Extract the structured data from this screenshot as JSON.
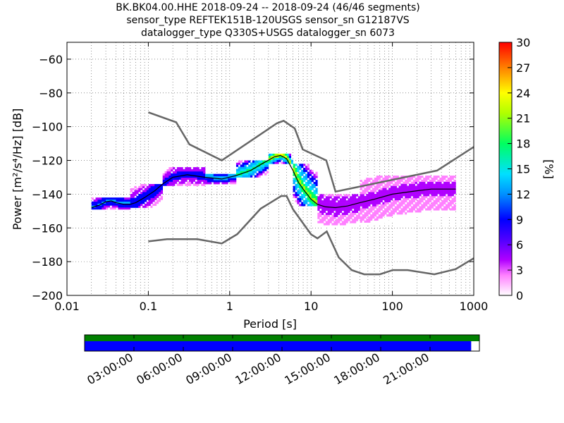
{
  "title": {
    "line1": "BK.BK04.00.HHE   2018-09-24 -- 2018-09-24  (46/46 segments)",
    "line2": "sensor_type REFTEK151B-120USGS sensor_sn G12187VS",
    "line3": "datalogger_type Q330S+USGS datalogger_sn 6073"
  },
  "chart_data": [
    {
      "type": "heatmap",
      "xlabel": "Period [s]",
      "ylabel": "Power [m²/s⁴/Hz] [dB]",
      "xscale": "log",
      "xlim": [
        0.01,
        1000
      ],
      "ylim": [
        -200,
        -50
      ],
      "x_tick_labels": [
        "0.01",
        "0.1",
        "1",
        "10",
        "100",
        "1000"
      ],
      "x_ticks": [
        0.01,
        0.1,
        1,
        10,
        100,
        1000
      ],
      "y_ticks": [
        -200,
        -180,
        -160,
        -140,
        -120,
        -100,
        -80,
        -60
      ],
      "y_tick_labels": [
        "−200",
        "−180",
        "−160",
        "−140",
        "−120",
        "−100",
        "−80",
        "−60"
      ],
      "grid": "dotted",
      "colorbar": {
        "label": "[%]",
        "min": 0,
        "max": 30,
        "ticks": [
          "0",
          "3",
          "6",
          "9",
          "12",
          "15",
          "18",
          "21",
          "24",
          "27",
          "30"
        ],
        "colormap": "pqlx"
      },
      "noise_models": {
        "color": "#666666",
        "high": [
          [
            0.1,
            -91.5
          ],
          [
            0.22,
            -97.4
          ],
          [
            0.32,
            -110.5
          ],
          [
            0.8,
            -120
          ],
          [
            3.8,
            -98
          ],
          [
            4.6,
            -96.5
          ],
          [
            6.3,
            -101
          ],
          [
            7.9,
            -113.5
          ],
          [
            15.4,
            -120
          ],
          [
            20,
            -138.5
          ],
          [
            354,
            -126
          ],
          [
            1000,
            -112
          ]
        ],
        "low": [
          [
            0.1,
            -168
          ],
          [
            0.17,
            -166.7
          ],
          [
            0.4,
            -166.7
          ],
          [
            0.8,
            -169.2
          ],
          [
            1.24,
            -163.7
          ],
          [
            2.4,
            -148.6
          ],
          [
            4.3,
            -141.1
          ],
          [
            5,
            -141.1
          ],
          [
            6,
            -149
          ],
          [
            10,
            -163.8
          ],
          [
            12,
            -166.2
          ],
          [
            15.6,
            -162.1
          ],
          [
            21.9,
            -177.5
          ],
          [
            31.6,
            -185
          ],
          [
            45,
            -187.5
          ],
          [
            70,
            -187.5
          ],
          [
            101,
            -185
          ],
          [
            154,
            -185
          ],
          [
            328,
            -187.5
          ],
          [
            600,
            -184.4
          ],
          [
            1000,
            -178
          ]
        ]
      },
      "median_curve": [
        [
          0.02,
          -148
        ],
        [
          0.025,
          -146.5
        ],
        [
          0.03,
          -144.5
        ],
        [
          0.035,
          -144
        ],
        [
          0.04,
          -145
        ],
        [
          0.05,
          -146
        ],
        [
          0.06,
          -146
        ],
        [
          0.07,
          -145
        ],
        [
          0.09,
          -142
        ],
        [
          0.12,
          -138
        ],
        [
          0.15,
          -134
        ],
        [
          0.2,
          -130
        ],
        [
          0.3,
          -128.5
        ],
        [
          0.5,
          -130
        ],
        [
          0.8,
          -131
        ],
        [
          1.2,
          -129
        ],
        [
          1.8,
          -126
        ],
        [
          2.5,
          -122
        ],
        [
          3.5,
          -118
        ],
        [
          4.2,
          -117
        ],
        [
          5,
          -119
        ],
        [
          6,
          -126
        ],
        [
          7,
          -133
        ],
        [
          8,
          -137
        ],
        [
          10,
          -143
        ],
        [
          12,
          -146
        ],
        [
          15,
          -147.5
        ],
        [
          20,
          -148
        ],
        [
          28,
          -147
        ],
        [
          40,
          -145
        ],
        [
          60,
          -143
        ],
        [
          100,
          -140
        ],
        [
          200,
          -138
        ],
        [
          300,
          -137
        ],
        [
          600,
          -137
        ]
      ],
      "density_bands": [
        {
          "x_range": [
            0.02,
            0.06
          ],
          "y_range": [
            -149,
            -142
          ],
          "percent": 12
        },
        {
          "x_range": [
            0.06,
            0.15
          ],
          "y_range": [
            -148,
            -134
          ],
          "percent": 10
        },
        {
          "x_range": [
            0.15,
            0.5
          ],
          "y_range": [
            -135,
            -124
          ],
          "percent": 9
        },
        {
          "x_range": [
            0.5,
            1.2
          ],
          "y_range": [
            -134,
            -128
          ],
          "percent": 14
        },
        {
          "x_range": [
            1.2,
            3
          ],
          "y_range": [
            -130,
            -120
          ],
          "percent": 20
        },
        {
          "x_range": [
            3,
            6
          ],
          "y_range": [
            -122,
            -116
          ],
          "percent": 25
        },
        {
          "x_range": [
            6,
            12
          ],
          "y_range": [
            -147,
            -122
          ],
          "percent": 22
        },
        {
          "x_range": [
            12,
            40
          ],
          "y_range": [
            -162,
            -140
          ],
          "percent": 6
        },
        {
          "x_range": [
            40,
            600
          ],
          "y_range": [
            -158,
            -129
          ],
          "percent": 5
        }
      ]
    },
    {
      "type": "bar",
      "title": "",
      "time_tick_labels": [
        "03:00:00",
        "06:00:00",
        "09:00:00",
        "12:00:00",
        "15:00:00",
        "18:00:00",
        "21:00:00"
      ],
      "time_ticks_hours": [
        3,
        6,
        9,
        12,
        15,
        18,
        21
      ],
      "range_hours": [
        0,
        24
      ],
      "data_coverage": [
        0,
        24
      ],
      "psd_coverage": [
        0,
        23.5
      ],
      "colors": {
        "data": "#008000",
        "psd": "#0000ff"
      }
    }
  ]
}
